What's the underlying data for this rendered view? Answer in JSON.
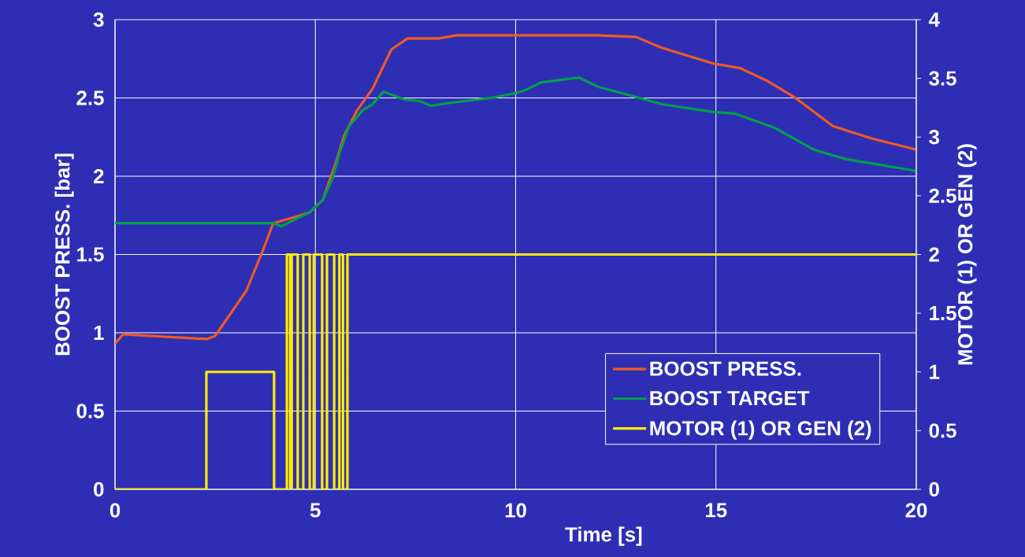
{
  "chart_data": {
    "type": "line",
    "xlabel": "Time [s]",
    "ylabel": "BOOST PRESS. [bar]",
    "y2label": "MOTOR (1) OR GEN (2)",
    "xlim": [
      0,
      20
    ],
    "xticks": [
      0,
      5,
      10,
      15,
      20
    ],
    "ylim": [
      0,
      3
    ],
    "yticks": [
      0,
      0.5,
      1,
      1.5,
      2,
      2.5,
      3
    ],
    "y2lim": [
      0,
      4
    ],
    "y2ticks": [
      0,
      0.5,
      1,
      1.5,
      2,
      2.5,
      3,
      3.5,
      4
    ],
    "grid": true,
    "legend": "bottom right",
    "series": [
      {
        "name": "BOOST PRESS.",
        "color": "#f05a22",
        "x": [
          0,
          0.2,
          2.3,
          2.5,
          3.28,
          3.68,
          3.95,
          4.5,
          4.86,
          5.19,
          5.53,
          5.72,
          6.04,
          6.43,
          6.9,
          7.3,
          8.08,
          8.53,
          12.0,
          13.0,
          13.65,
          14.93,
          15.61,
          16.27,
          16.93,
          17.92,
          18.9,
          19.85,
          20
        ],
        "values": [
          0.93,
          0.99,
          0.96,
          0.98,
          1.27,
          1.52,
          1.7,
          1.74,
          1.77,
          1.85,
          2.1,
          2.26,
          2.42,
          2.56,
          2.81,
          2.88,
          2.88,
          2.9,
          2.9,
          2.89,
          2.82,
          2.72,
          2.69,
          2.61,
          2.51,
          2.32,
          2.24,
          2.18,
          2.17
        ]
      },
      {
        "name": "BOOST TARGET",
        "color": "#00a04a",
        "x": [
          0,
          3.95,
          4.15,
          4.86,
          5.19,
          5.43,
          5.62,
          5.84,
          6.18,
          6.43,
          6.7,
          7.22,
          7.61,
          7.89,
          8.4,
          9.38,
          10.0,
          10.24,
          10.64,
          11.58,
          12.07,
          12.66,
          13.65,
          14.93,
          15.48,
          16.46,
          17.44,
          18.23,
          19.85,
          20
        ],
        "values": [
          1.7,
          1.7,
          1.68,
          1.77,
          1.85,
          1.99,
          2.16,
          2.32,
          2.42,
          2.46,
          2.54,
          2.49,
          2.48,
          2.45,
          2.47,
          2.5,
          2.53,
          2.55,
          2.6,
          2.63,
          2.57,
          2.53,
          2.46,
          2.41,
          2.4,
          2.31,
          2.17,
          2.11,
          2.04,
          2.03
        ]
      },
      {
        "name": "MOTOR (1) OR GEN (2)",
        "color": "#ffee00",
        "type": "step",
        "axis": "y2",
        "x": [
          0,
          2.28,
          3.97,
          4.29,
          4.37,
          4.41,
          4.56,
          4.7,
          4.86,
          4.96,
          5.17,
          5.29,
          5.47,
          5.6,
          5.69,
          5.8,
          20
        ],
        "values": [
          0,
          1,
          0,
          2,
          0,
          2,
          0,
          2,
          0,
          2,
          0,
          2,
          0,
          2,
          0,
          2,
          2
        ]
      }
    ]
  }
}
